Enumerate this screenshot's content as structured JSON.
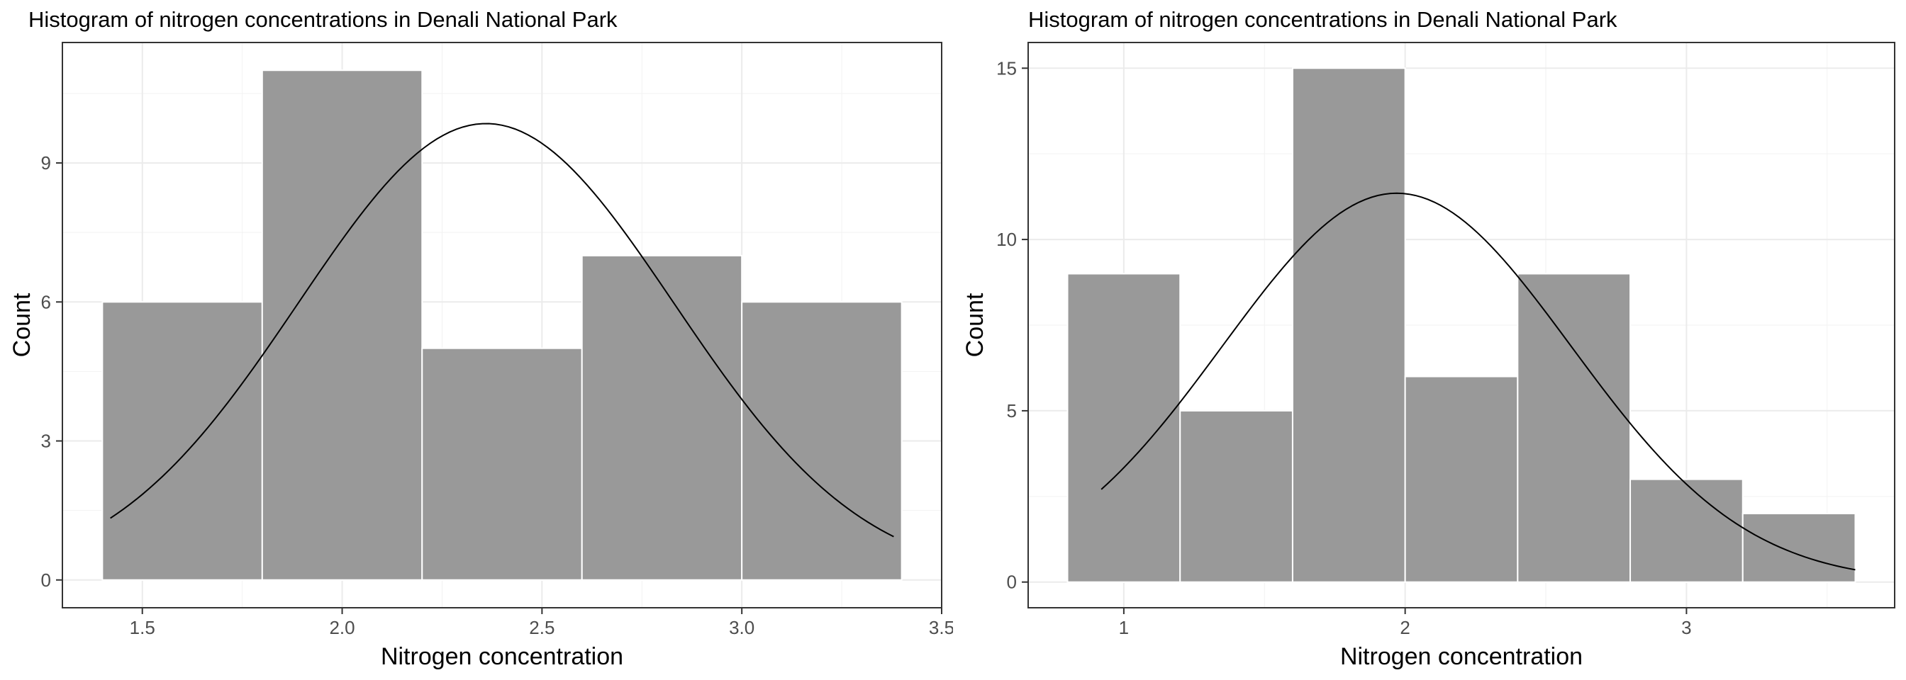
{
  "chart_data": [
    {
      "type": "bar",
      "title": "Histogram of nitrogen concentrations in Denali National Park",
      "xlabel": "Nitrogen concentration",
      "ylabel": "Count",
      "xlim": [
        1.3,
        3.5
      ],
      "ylim": [
        -0.6,
        11.6
      ],
      "xticks": [
        1.5,
        2.0,
        2.5,
        3.0,
        3.5
      ],
      "xtick_labels": [
        "1.5",
        "2.0",
        "2.5",
        "3.0",
        "3.5"
      ],
      "yticks": [
        0,
        3,
        6,
        9
      ],
      "ytick_labels": [
        "0",
        "3",
        "6",
        "9"
      ],
      "bins": [
        {
          "start": 1.4,
          "end": 1.8,
          "count": 6
        },
        {
          "start": 1.8,
          "end": 2.2,
          "count": 11
        },
        {
          "start": 2.2,
          "end": 2.6,
          "count": 5
        },
        {
          "start": 2.6,
          "end": 3.0,
          "count": 7
        },
        {
          "start": 3.0,
          "end": 3.4,
          "count": 6
        }
      ],
      "normal_curve": {
        "mean": 2.36,
        "peak": 9.85,
        "sd": 0.47,
        "x_range": [
          1.42,
          3.38
        ]
      },
      "bar_color": "#999999",
      "grid": true
    },
    {
      "type": "bar",
      "title": "Histogram of nitrogen concentrations in Denali National Park",
      "xlabel": "Nitrogen concentration",
      "ylabel": "Count",
      "xlim": [
        0.66,
        3.74
      ],
      "ylim": [
        -0.75,
        15.75
      ],
      "xticks": [
        1,
        2,
        3
      ],
      "xtick_labels": [
        "1",
        "2",
        "3"
      ],
      "yticks": [
        0,
        5,
        10,
        15
      ],
      "ytick_labels": [
        "0",
        "5",
        "10",
        "15"
      ],
      "bins": [
        {
          "start": 0.8,
          "end": 1.2,
          "count": 9
        },
        {
          "start": 1.2,
          "end": 1.6,
          "count": 5
        },
        {
          "start": 1.6,
          "end": 2.0,
          "count": 15
        },
        {
          "start": 2.0,
          "end": 2.4,
          "count": 6
        },
        {
          "start": 2.4,
          "end": 2.8,
          "count": 9
        },
        {
          "start": 2.8,
          "end": 3.2,
          "count": 3
        },
        {
          "start": 3.2,
          "end": 3.6,
          "count": 2
        }
      ],
      "normal_curve": {
        "mean": 1.97,
        "peak": 11.35,
        "sd": 0.62,
        "x_range": [
          0.92,
          3.6
        ]
      },
      "bar_color": "#999999",
      "grid": true
    }
  ]
}
